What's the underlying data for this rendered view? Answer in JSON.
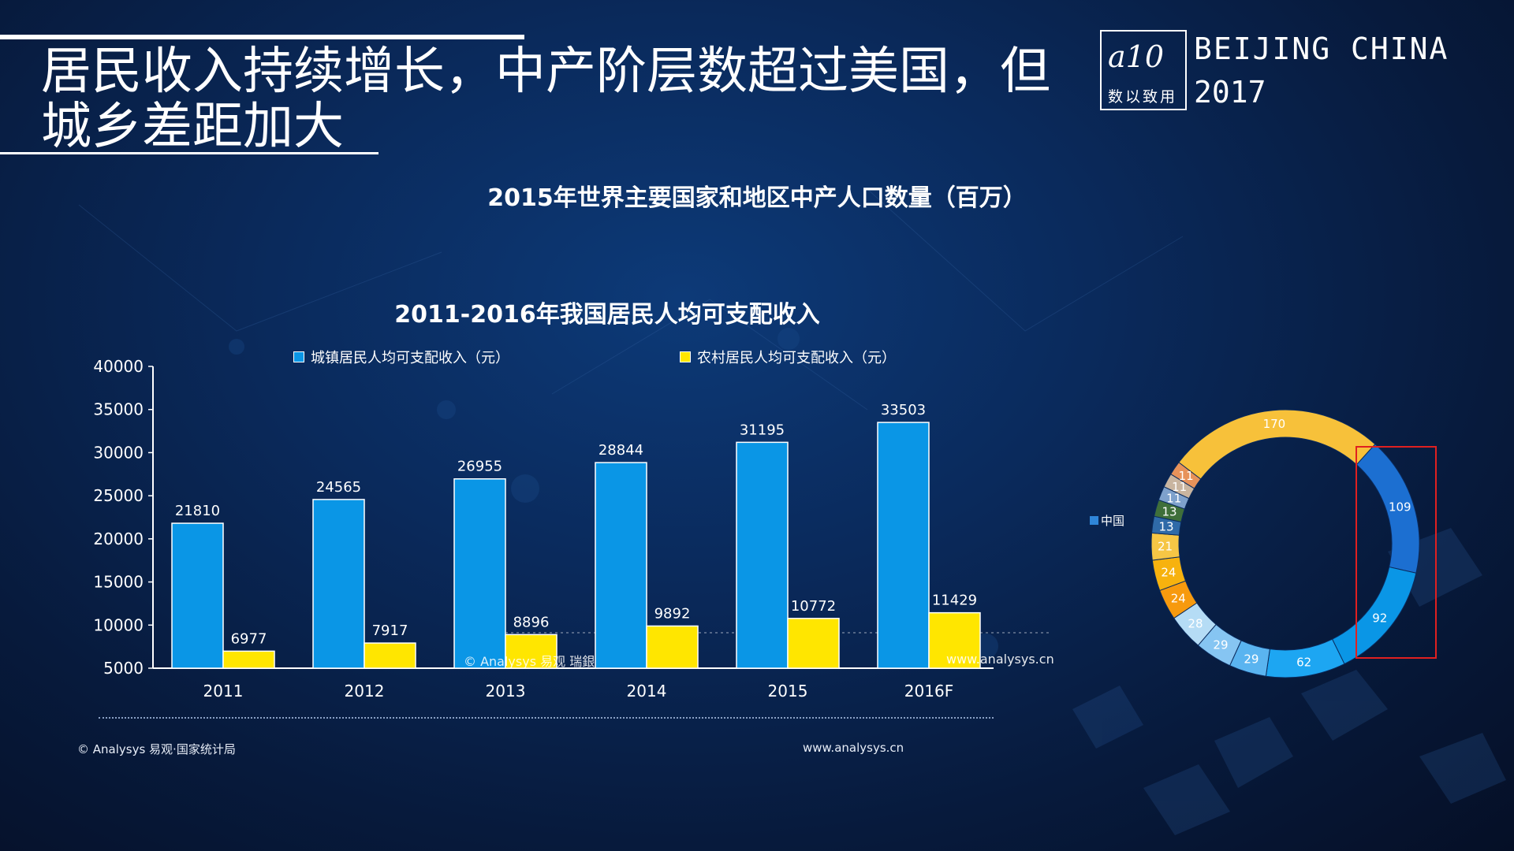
{
  "header": {
    "title": "居民收入持续增长，中产阶层数超过美国，但城乡差距加大",
    "logo_mark": "a10",
    "logo_text": "数以致用",
    "event_line1": "BEIJING CHINA",
    "event_line2": "2017"
  },
  "world_chart": {
    "title": "2015年世界主要国家和地区中产人口数量（百万）",
    "legend_label": "中国",
    "highlight_color": "#e02020"
  },
  "chart_data": [
    {
      "type": "bar",
      "title": "2011-2016年我国居民人均可支配收入",
      "categories": [
        "2011",
        "2012",
        "2013",
        "2014",
        "2015",
        "2016F"
      ],
      "series": [
        {
          "name": "城镇居民人均可支配收入（元）",
          "color": "#0a96e6",
          "values": [
            21810,
            24565,
            26955,
            28844,
            31195,
            33503
          ]
        },
        {
          "name": "农村居民人均可支配收入（元）",
          "color": "#ffe600",
          "values": [
            6977,
            7917,
            8896,
            9892,
            10772,
            11429
          ]
        }
      ],
      "yticks": [
        "40000",
        "35000",
        "30000",
        "25000",
        "20000",
        "15000",
        "10000",
        "5000"
      ],
      "ylim": [
        5000,
        40000
      ],
      "grid": false,
      "legend_position": "top",
      "watermark_left": "© Analysys 易观 瑞銀",
      "watermark_right": "www.analysys.cn"
    },
    {
      "type": "pie",
      "title": "2015年世界主要国家和地区中产人口数量（百万）",
      "values": [
        109,
        92,
        62,
        29,
        29,
        28,
        24,
        24,
        21,
        0,
        13,
        13,
        11,
        11,
        11,
        170
      ],
      "labels": [
        "109",
        "92",
        "62",
        "29",
        "29",
        "28",
        "24",
        "24",
        "21",
        "",
        "13",
        "13",
        "11",
        "11",
        "11",
        "170"
      ],
      "colors": [
        "#1c6fd1",
        "#0a96e6",
        "#1da6f2",
        "#5ab4f0",
        "#86c5f2",
        "#b5dcf5",
        "#f79a0e",
        "#f7b20e",
        "#f6c645",
        "#f6ead0",
        "#2f6aa8",
        "#3f6f3a",
        "#7ea1cc",
        "#c9b5a0",
        "#e7925a",
        "#f7c13a"
      ],
      "highlight": "China"
    }
  ],
  "footer": {
    "source_left": "© Analysys 易观·国家统计局",
    "source_mid": "www.analysys.cn"
  }
}
